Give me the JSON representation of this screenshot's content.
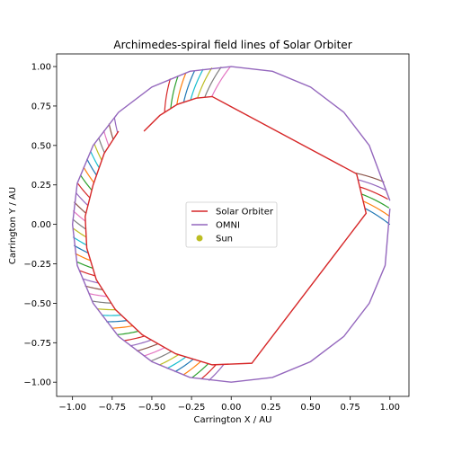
{
  "chart_data": {
    "type": "line",
    "title": "Archimedes-spiral field lines of Solar Orbiter",
    "xlabel": "Carrington X / AU",
    "ylabel": "Carrington Y / AU",
    "xlim": [
      -1.1,
      1.12
    ],
    "ylim": [
      -1.09,
      1.08
    ],
    "xticks": [
      -1.0,
      -0.75,
      -0.5,
      -0.25,
      0.0,
      0.25,
      0.5,
      0.75,
      1.0
    ],
    "yticks": [
      -1.0,
      -0.75,
      -0.5,
      -0.25,
      0.0,
      0.25,
      0.5,
      0.75,
      1.0
    ],
    "xtick_labels": [
      "−1.00",
      "−0.75",
      "−0.50",
      "−0.25",
      "0.00",
      "0.25",
      "0.50",
      "0.75",
      "1.00"
    ],
    "ytick_labels": [
      "−1.00",
      "−0.75",
      "−0.50",
      "−0.25",
      "0.00",
      "0.25",
      "0.50",
      "0.75",
      "1.00"
    ],
    "grid": false,
    "legend_position": "center",
    "series": [
      {
        "name": "Solar Orbiter",
        "color": "#d62728",
        "x": [
          -0.55,
          -0.45,
          -0.34,
          -0.22,
          -0.12,
          0.79,
          0.85,
          0.13,
          -0.12,
          -0.35,
          -0.56,
          -0.73,
          -0.85,
          -0.91,
          -0.92,
          -0.87,
          -0.8,
          -0.71
        ],
        "y": [
          0.59,
          0.69,
          0.76,
          0.8,
          0.81,
          0.32,
          0.07,
          -0.88,
          -0.89,
          -0.82,
          -0.7,
          -0.54,
          -0.35,
          -0.15,
          0.05,
          0.25,
          0.45,
          0.59
        ]
      },
      {
        "name": "OMNI",
        "color": "#9467bd",
        "x": [
          1.0,
          0.87,
          0.71,
          0.5,
          0.26,
          0.0,
          -0.26,
          -0.5,
          -0.71,
          -0.87,
          -0.97,
          -1.0,
          -0.97,
          -0.87,
          -0.71,
          -0.5,
          -0.26,
          0.0,
          0.26,
          0.5,
          0.71,
          0.87,
          0.97,
          1.0
        ],
        "y": [
          0.15,
          0.5,
          0.71,
          0.87,
          0.97,
          1.0,
          0.97,
          0.87,
          0.71,
          0.5,
          0.26,
          0.0,
          -0.26,
          -0.5,
          -0.71,
          -0.87,
          -0.97,
          -1.0,
          -0.97,
          -0.87,
          -0.71,
          -0.5,
          -0.26,
          0.1
        ]
      },
      {
        "name": "Sun",
        "color": "#bcbd22",
        "x": [],
        "y": []
      }
    ]
  }
}
